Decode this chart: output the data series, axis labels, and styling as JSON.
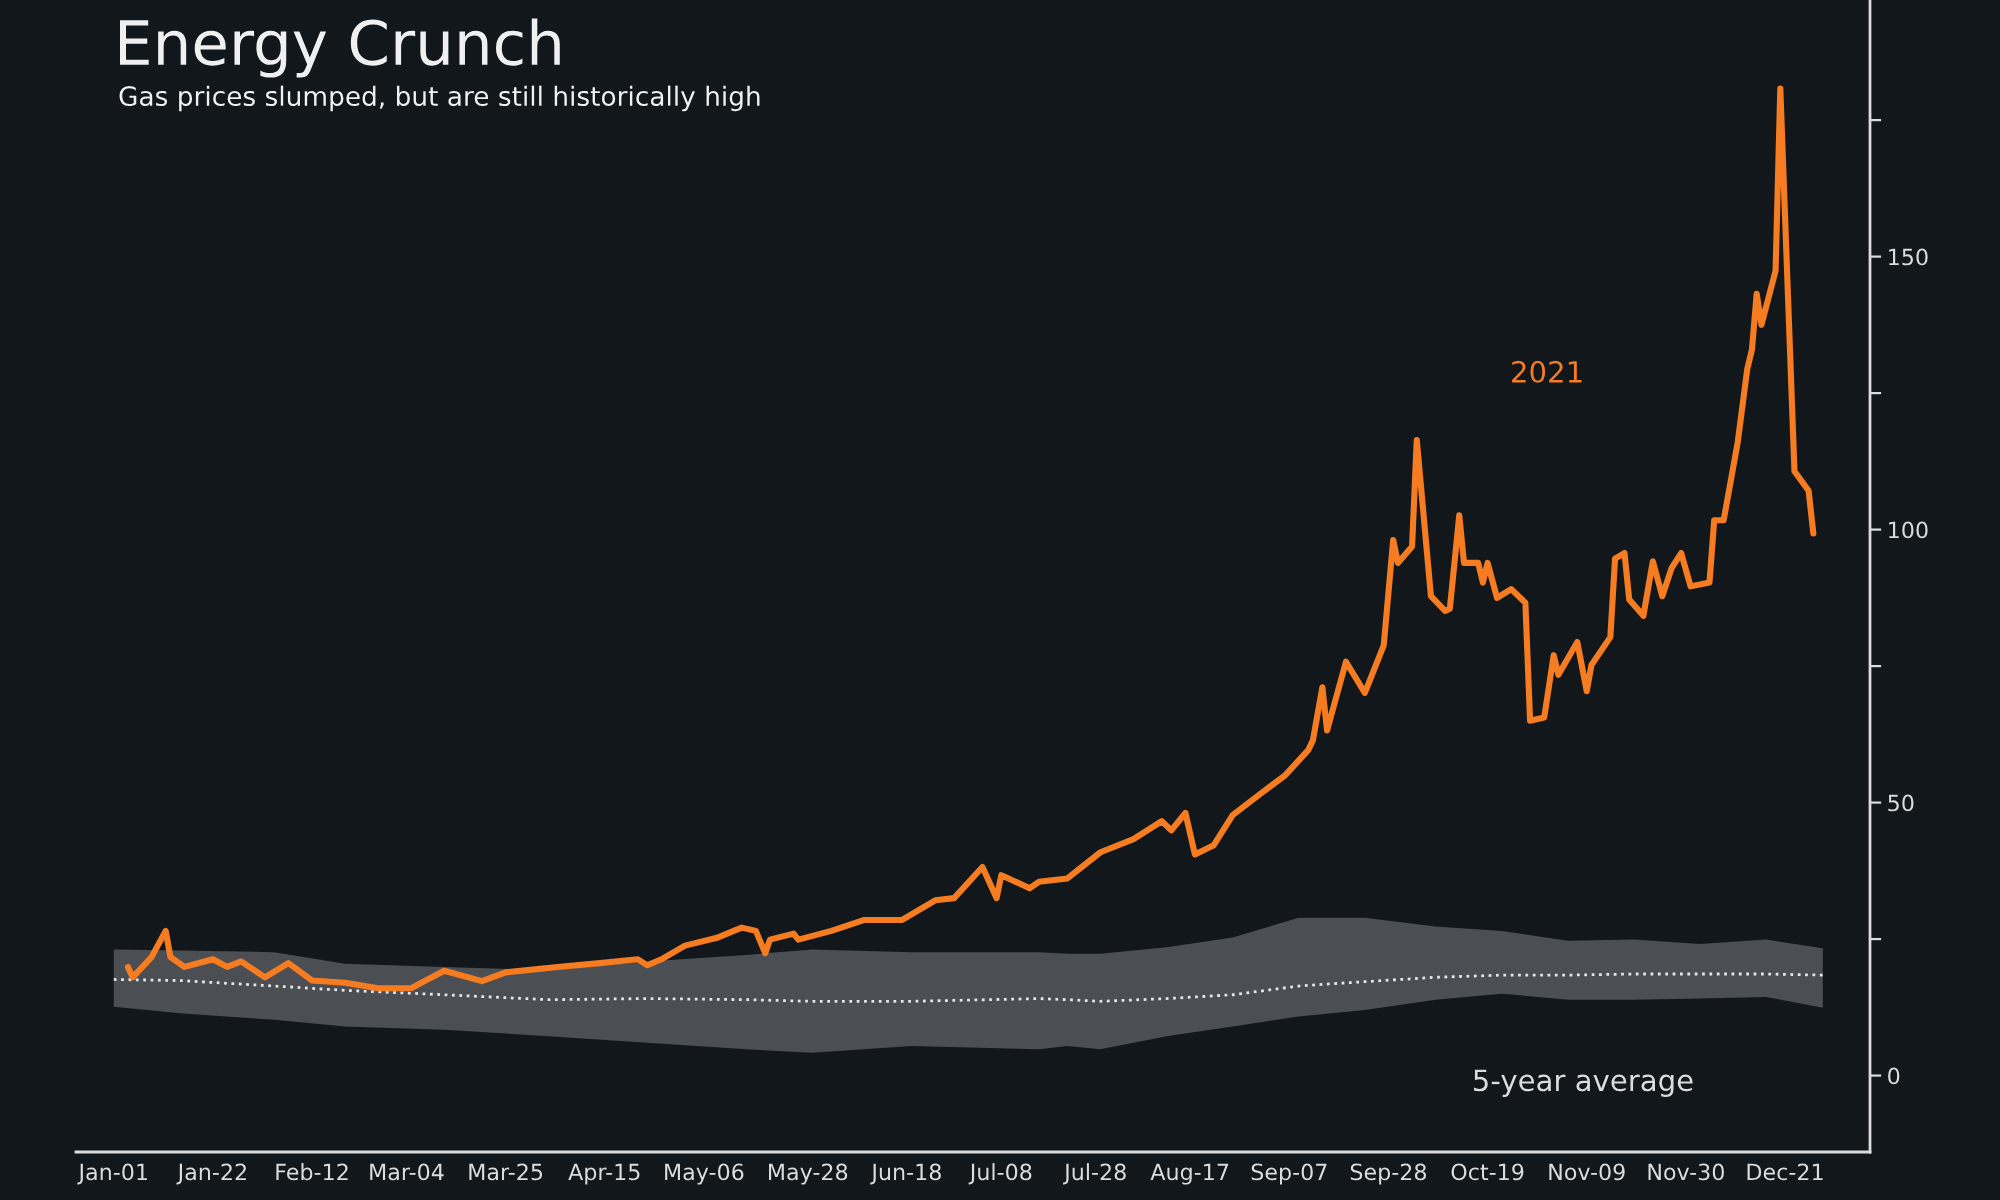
{
  "chart_data": {
    "type": "line",
    "title": "Energy Crunch",
    "subtitle": "Gas prices slumped, but are still historically high",
    "xlim": [
      "2020-12-24",
      "2022-01-08"
    ],
    "ylim": [
      -14,
      197
    ],
    "xticks": [
      {
        "value": "2021-01-01",
        "label": "Jan-01"
      },
      {
        "value": "2021-01-22",
        "label": "Jan-22"
      },
      {
        "value": "2021-02-12",
        "label": "Feb-12"
      },
      {
        "value": "2021-03-04",
        "label": "Mar-04"
      },
      {
        "value": "2021-03-25",
        "label": "Mar-25"
      },
      {
        "value": "2021-04-15",
        "label": "Apr-15"
      },
      {
        "value": "2021-05-06",
        "label": "May-06"
      },
      {
        "value": "2021-05-28",
        "label": "May-28"
      },
      {
        "value": "2021-06-18",
        "label": "Jun-18"
      },
      {
        "value": "2021-07-08",
        "label": "Jul-08"
      },
      {
        "value": "2021-07-28",
        "label": "Jul-28"
      },
      {
        "value": "2021-08-17",
        "label": "Aug-17"
      },
      {
        "value": "2021-09-07",
        "label": "Sep-07"
      },
      {
        "value": "2021-09-28",
        "label": "Sep-28"
      },
      {
        "value": "2021-10-19",
        "label": "Oct-19"
      },
      {
        "value": "2021-11-09",
        "label": "Nov-09"
      },
      {
        "value": "2021-11-30",
        "label": "Nov-30"
      },
      {
        "value": "2021-12-21",
        "label": "Dec-21"
      }
    ],
    "yticks": [
      0,
      {
        "value": 25,
        "label": null
      },
      50,
      {
        "value": 75,
        "label": null
      },
      100,
      {
        "value": 125,
        "label": null
      },
      150,
      {
        "value": 175,
        "label": null
      }
    ],
    "marker": "none",
    "series": [
      {
        "name": "5-year average",
        "color": "#e6e6e6",
        "line_style": "dotted",
        "x": [
          "2021-01-01",
          "2021-01-15",
          "2021-02-04",
          "2021-02-19",
          "2021-03-12",
          "2021-04-03",
          "2021-04-24",
          "2021-05-15",
          "2021-05-29",
          "2021-06-19",
          "2021-07-16",
          "2021-07-22",
          "2021-07-29",
          "2021-08-12",
          "2021-08-26",
          "2021-09-09",
          "2021-09-23",
          "2021-10-08",
          "2021-10-22",
          "2021-11-05",
          "2021-11-19",
          "2021-12-03",
          "2021-12-17",
          "2021-12-29"
        ],
        "values": [
          17.6,
          17.4,
          16.4,
          15.6,
          14.8,
          13.9,
          14.1,
          13.9,
          13.6,
          13.6,
          14.1,
          13.9,
          13.6,
          14.1,
          14.8,
          16.4,
          17.2,
          18.0,
          18.4,
          18.4,
          18.6,
          18.6,
          18.6,
          18.4
        ],
        "upper": [
          23.1,
          22.9,
          22.6,
          20.5,
          19.9,
          19.3,
          20.9,
          22.1,
          23.1,
          22.6,
          22.6,
          22.3,
          22.3,
          23.5,
          25.3,
          28.9,
          28.9,
          27.3,
          26.5,
          24.7,
          24.9,
          24.1,
          24.9,
          23.3
        ],
        "lower": [
          12.6,
          11.4,
          10.2,
          9.0,
          8.4,
          7.2,
          6.0,
          4.8,
          4.2,
          5.4,
          4.8,
          5.4,
          4.8,
          7.2,
          9.0,
          10.8,
          12.0,
          13.9,
          15.0,
          13.9,
          13.9,
          14.1,
          14.4,
          12.4
        ]
      },
      {
        "name": "2021",
        "color": "#f57c20",
        "line_style": "solid",
        "x": [
          "2021-01-04",
          "2021-01-05",
          "2021-01-09",
          "2021-01-12",
          "2021-01-13",
          "2021-01-16",
          "2021-01-22",
          "2021-01-25",
          "2021-01-28",
          "2021-02-02",
          "2021-02-07",
          "2021-02-12",
          "2021-02-19",
          "2021-02-26",
          "2021-03-05",
          "2021-03-08",
          "2021-03-12",
          "2021-03-20",
          "2021-03-25",
          "2021-04-05",
          "2021-04-14",
          "2021-04-22",
          "2021-04-24",
          "2021-04-27",
          "2021-05-02",
          "2021-05-09",
          "2021-05-14",
          "2021-05-17",
          "2021-05-19",
          "2021-05-20",
          "2021-05-25",
          "2021-05-26",
          "2021-06-02",
          "2021-06-09",
          "2021-06-17",
          "2021-06-24",
          "2021-06-28",
          "2021-07-04",
          "2021-07-07",
          "2021-07-08",
          "2021-07-14",
          "2021-07-16",
          "2021-07-22",
          "2021-07-29",
          "2021-08-05",
          "2021-08-11",
          "2021-08-13",
          "2021-08-16",
          "2021-08-18",
          "2021-08-22",
          "2021-08-26",
          "2021-09-01",
          "2021-09-06",
          "2021-09-11",
          "2021-09-12",
          "2021-09-14",
          "2021-09-15",
          "2021-09-19",
          "2021-09-23",
          "2021-09-27",
          "2021-09-29",
          "2021-09-30",
          "2021-10-03",
          "2021-10-04",
          "2021-10-07",
          "2021-10-10",
          "2021-10-11",
          "2021-10-13",
          "2021-10-14",
          "2021-10-17",
          "2021-10-18",
          "2021-10-19",
          "2021-10-21",
          "2021-10-24",
          "2021-10-27",
          "2021-10-28",
          "2021-10-31",
          "2021-11-02",
          "2021-11-03",
          "2021-11-07",
          "2021-11-09",
          "2021-11-10",
          "2021-11-14",
          "2021-11-15",
          "2021-11-17",
          "2021-11-18",
          "2021-11-21",
          "2021-11-23",
          "2021-11-25",
          "2021-11-27",
          "2021-11-29",
          "2021-12-01",
          "2021-12-05",
          "2021-12-06",
          "2021-12-08",
          "2021-12-11",
          "2021-12-13",
          "2021-12-14",
          "2021-12-15",
          "2021-12-16",
          "2021-12-19",
          "2021-12-20",
          "2021-12-23",
          "2021-12-26",
          "2021-12-27"
        ],
        "values": [
          19.9,
          18.0,
          21.7,
          26.5,
          21.7,
          19.9,
          21.3,
          19.9,
          20.9,
          18.0,
          20.6,
          17.4,
          17.0,
          16.0,
          16.0,
          17.4,
          19.2,
          17.3,
          18.9,
          19.9,
          20.6,
          21.3,
          20.2,
          21.3,
          23.8,
          25.3,
          27.1,
          26.5,
          22.4,
          24.9,
          26.0,
          24.9,
          26.5,
          28.5,
          28.5,
          32.1,
          32.5,
          38.2,
          32.5,
          36.7,
          34.3,
          35.5,
          36.1,
          40.9,
          43.3,
          46.6,
          44.9,
          48.1,
          40.5,
          42.2,
          47.7,
          51.7,
          54.9,
          59.6,
          61.4,
          71.1,
          63.2,
          75.8,
          70.1,
          78.8,
          98.1,
          93.9,
          96.9,
          116.4,
          87.8,
          85.1,
          85.5,
          102.6,
          93.9,
          93.9,
          90.3,
          93.9,
          87.5,
          89.1,
          86.6,
          65.0,
          65.6,
          77.0,
          73.4,
          79.4,
          70.4,
          75.2,
          80.3,
          94.7,
          95.7,
          87.2,
          84.2,
          94.2,
          87.8,
          93.0,
          95.7,
          89.6,
          90.3,
          101.7,
          101.7,
          116.1,
          129.4,
          133.0,
          143.2,
          137.5,
          147.4,
          180.8,
          110.7,
          107.1,
          99.3
        ]
      }
    ]
  }
}
